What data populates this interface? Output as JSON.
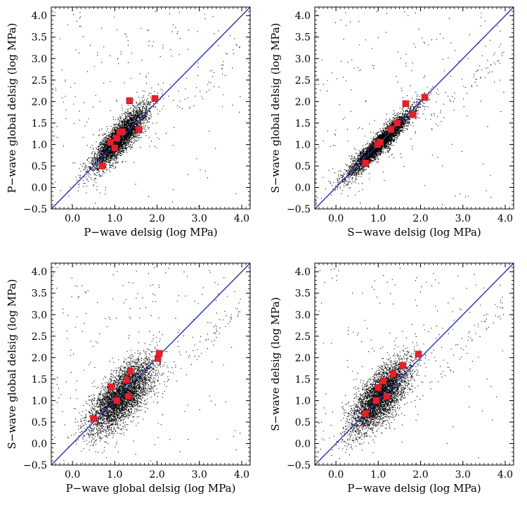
{
  "figure": {
    "panels": [
      {
        "xlabel": "P−wave delsig (log MPa)",
        "ylabel": "P−wave global delsig (log MPa)"
      },
      {
        "xlabel": "S−wave delsig (log MPa)",
        "ylabel": "S−wave global delsig (log MPa)"
      },
      {
        "xlabel": "P−wave global delsig (log MPa)",
        "ylabel": "S−wave global delsig (log MPa)"
      },
      {
        "xlabel": "P−wave delsig (log MPa)",
        "ylabel": "S−wave delsig (log MPa)"
      }
    ]
  },
  "colors": {
    "points": "#000000",
    "highlight": "#e8202a",
    "line": "#2233aa"
  },
  "chart_data": [
    {
      "type": "scatter",
      "title": "",
      "xlabel": "P−wave delsig (log MPa)",
      "ylabel": "P−wave global delsig (log MPa)",
      "xlim": [
        -0.5,
        4.2
      ],
      "ylim": [
        -0.5,
        4.2
      ],
      "xticks": [
        "0.0",
        "1.0",
        "2.0",
        "3.0",
        "4.0"
      ],
      "yticks": [
        "−0.5",
        "0.0",
        "0.5",
        "1.0",
        "1.5",
        "2.0",
        "2.5",
        "3.0",
        "3.5",
        "4.0"
      ],
      "reference_line": "1:1",
      "background_cloud": {
        "count": 4500,
        "center": [
          1.1,
          1.15
        ],
        "spread": [
          0.32,
          0.36
        ],
        "correlation": 0.85,
        "seed": 11
      },
      "series": [
        {
          "points": [
            [
              0.7,
              0.5
            ],
            [
              0.9,
              1.05
            ],
            [
              1.0,
              0.92
            ],
            [
              1.05,
              1.15
            ],
            [
              1.12,
              1.28
            ],
            [
              1.18,
              1.3
            ],
            [
              1.35,
              2.02
            ],
            [
              1.57,
              1.35
            ],
            [
              1.95,
              2.07
            ]
          ]
        }
      ]
    },
    {
      "type": "scatter",
      "title": "",
      "xlabel": "S−wave delsig (log MPa)",
      "ylabel": "S−wave global delsig (log MPa)",
      "xlim": [
        -0.5,
        4.2
      ],
      "ylim": [
        -0.5,
        4.2
      ],
      "xticks": [
        "0.0",
        "1.0",
        "2.0",
        "3.0",
        "4.0"
      ],
      "yticks": [
        "−0.5",
        "0.0",
        "0.5",
        "1.0",
        "1.5",
        "2.0",
        "2.5",
        "3.0",
        "3.5",
        "4.0"
      ],
      "reference_line": "1:1",
      "background_cloud": {
        "count": 4500,
        "center": [
          1.05,
          1.05
        ],
        "spread": [
          0.4,
          0.4
        ],
        "correlation": 0.95,
        "seed": 23
      },
      "series": [
        {
          "points": [
            [
              0.7,
              0.57
            ],
            [
              0.98,
              1.0
            ],
            [
              1.05,
              1.05
            ],
            [
              1.3,
              1.35
            ],
            [
              1.45,
              1.5
            ],
            [
              1.65,
              1.95
            ],
            [
              1.82,
              1.7
            ],
            [
              2.1,
              2.1
            ]
          ]
        }
      ]
    },
    {
      "type": "scatter",
      "title": "",
      "xlabel": "P−wave global delsig (log MPa)",
      "ylabel": "S−wave global delsig (log MPa)",
      "xlim": [
        -0.5,
        4.2
      ],
      "ylim": [
        -0.5,
        4.2
      ],
      "xticks": [
        "0.0",
        "1.0",
        "2.0",
        "3.0",
        "4.0"
      ],
      "yticks": [
        "−0.5",
        "0.0",
        "0.5",
        "1.0",
        "1.5",
        "2.0",
        "2.5",
        "3.0",
        "3.5",
        "4.0"
      ],
      "reference_line": "1:1",
      "background_cloud": {
        "count": 4500,
        "center": [
          1.15,
          1.1
        ],
        "spread": [
          0.38,
          0.42
        ],
        "correlation": 0.7,
        "seed": 37
      },
      "series": [
        {
          "points": [
            [
              0.5,
              0.58
            ],
            [
              0.92,
              1.32
            ],
            [
              1.05,
              1.0
            ],
            [
              1.28,
              1.48
            ],
            [
              1.32,
              1.1
            ],
            [
              1.37,
              1.68
            ],
            [
              2.02,
              1.98
            ],
            [
              2.05,
              2.1
            ]
          ]
        }
      ]
    },
    {
      "type": "scatter",
      "title": "",
      "xlabel": "P−wave delsig (log MPa)",
      "ylabel": "S−wave delsig (log MPa)",
      "xlim": [
        -0.5,
        4.2
      ],
      "ylim": [
        -0.5,
        4.2
      ],
      "xticks": [
        "0.0",
        "1.0",
        "2.0",
        "3.0",
        "4.0"
      ],
      "yticks": [
        "−0.5",
        "0.0",
        "0.5",
        "1.0",
        "1.5",
        "2.0",
        "2.5",
        "3.0",
        "3.5",
        "4.0"
      ],
      "reference_line": "1:1",
      "background_cloud": {
        "count": 4500,
        "center": [
          1.05,
          1.1
        ],
        "spread": [
          0.35,
          0.42
        ],
        "correlation": 0.72,
        "seed": 53
      },
      "series": [
        {
          "points": [
            [
              0.7,
              0.7
            ],
            [
              0.95,
              1.0
            ],
            [
              1.0,
              1.3
            ],
            [
              1.12,
              1.45
            ],
            [
              1.2,
              1.1
            ],
            [
              1.35,
              1.62
            ],
            [
              1.58,
              1.82
            ],
            [
              1.95,
              2.08
            ]
          ]
        }
      ]
    }
  ]
}
